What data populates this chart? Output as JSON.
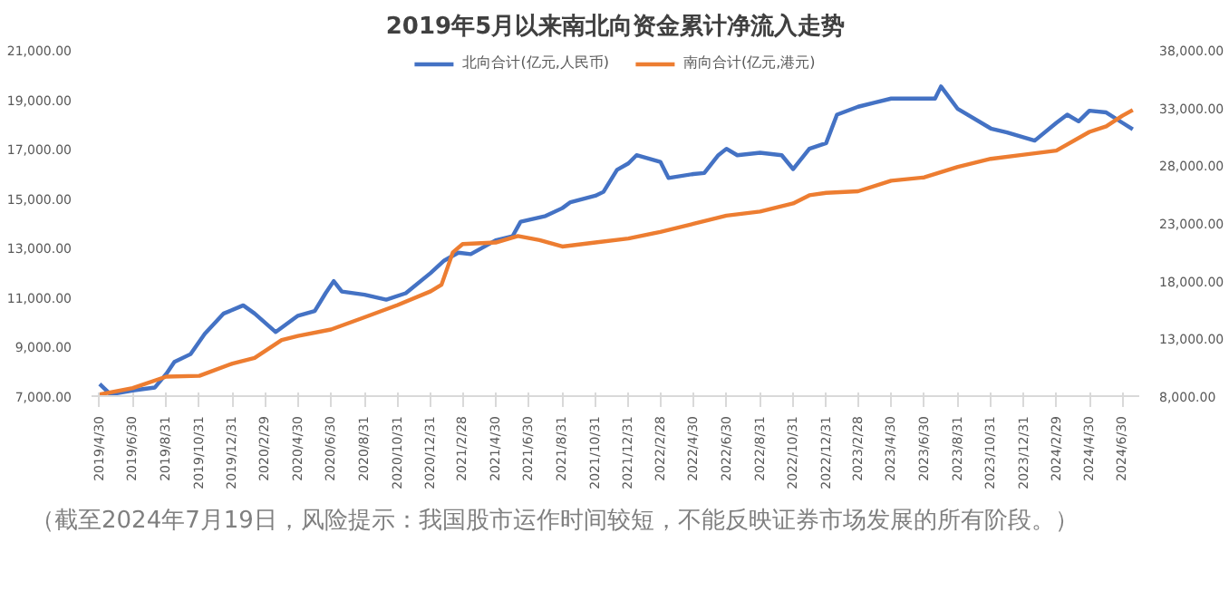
{
  "chart_data": {
    "type": "line",
    "title": "2019年5月以来南北向资金累计净流入走势",
    "annotations": [
      "（截至2024年7月19日，风险提示：我国股市运作时间较短，不能反映证券市场发展的所有阶段。）"
    ],
    "legend": "top",
    "grid": false,
    "marker": "none",
    "line_style": "solid",
    "xlim": [
      "2019-04-15",
      "2024-07-31"
    ],
    "xticks": [
      {
        "value": "2019-04-30",
        "label": "2019/4/30"
      },
      {
        "value": "2019-06-30",
        "label": "2019/6/30"
      },
      {
        "value": "2019-08-31",
        "label": "2019/8/31"
      },
      {
        "value": "2019-10-31",
        "label": "2019/10/31"
      },
      {
        "value": "2019-12-31",
        "label": "2019/12/31"
      },
      {
        "value": "2020-02-29",
        "label": "2020/2/29"
      },
      {
        "value": "2020-04-30",
        "label": "2020/4/30"
      },
      {
        "value": "2020-06-30",
        "label": "2020/6/30"
      },
      {
        "value": "2020-08-31",
        "label": "2020/8/31"
      },
      {
        "value": "2020-10-31",
        "label": "2020/10/31"
      },
      {
        "value": "2020-12-31",
        "label": "2020/12/31"
      },
      {
        "value": "2021-02-28",
        "label": "2021/2/28"
      },
      {
        "value": "2021-04-30",
        "label": "2021/4/30"
      },
      {
        "value": "2021-06-30",
        "label": "2021/6/30"
      },
      {
        "value": "2021-08-31",
        "label": "2021/8/31"
      },
      {
        "value": "2021-10-31",
        "label": "2021/10/31"
      },
      {
        "value": "2021-12-31",
        "label": "2021/12/31"
      },
      {
        "value": "2022-02-28",
        "label": "2022/2/28"
      },
      {
        "value": "2022-04-30",
        "label": "2022/4/30"
      },
      {
        "value": "2022-06-30",
        "label": "2022/6/30"
      },
      {
        "value": "2022-08-31",
        "label": "2022/8/31"
      },
      {
        "value": "2022-10-31",
        "label": "2022/10/31"
      },
      {
        "value": "2022-12-31",
        "label": "2022/12/31"
      },
      {
        "value": "2023-02-28",
        "label": "2023/2/28"
      },
      {
        "value": "2023-04-30",
        "label": "2023/4/30"
      },
      {
        "value": "2023-06-30",
        "label": "2023/6/30"
      },
      {
        "value": "2023-08-31",
        "label": "2023/8/31"
      },
      {
        "value": "2023-10-31",
        "label": "2023/10/31"
      },
      {
        "value": "2023-12-31",
        "label": "2023/12/31"
      },
      {
        "value": "2024-02-29",
        "label": "2024/2/29"
      },
      {
        "value": "2024-04-30",
        "label": "2024/4/30"
      },
      {
        "value": "2024-06-30",
        "label": "2024/6/30"
      }
    ],
    "ylim": [
      7000,
      21000
    ],
    "yticks": [
      {
        "value": 7000,
        "label": "7,000.00"
      },
      {
        "value": 9000,
        "label": "9,000.00"
      },
      {
        "value": 11000,
        "label": "11,000.00"
      },
      {
        "value": 13000,
        "label": "13,000.00"
      },
      {
        "value": 15000,
        "label": "15,000.00"
      },
      {
        "value": 17000,
        "label": "17,000.00"
      },
      {
        "value": 19000,
        "label": "19,000.00"
      },
      {
        "value": 21000,
        "label": "21,000.00"
      }
    ],
    "y2lim": [
      8000,
      38000
    ],
    "y2ticks": [
      {
        "value": 8000,
        "label": "8,000.00"
      },
      {
        "value": 13000,
        "label": "13,000.00"
      },
      {
        "value": 18000,
        "label": "18,000.00"
      },
      {
        "value": 23000,
        "label": "23,000.00"
      },
      {
        "value": 28000,
        "label": "28,000.00"
      },
      {
        "value": 33000,
        "label": "33,000.00"
      },
      {
        "value": 38000,
        "label": "38,000.00"
      }
    ],
    "series": [
      {
        "name": "北向合计(亿元,人民币)",
        "color": "#4472c4",
        "axis": "y",
        "x": [
          "2019-04-30",
          "2019-05-20",
          "2019-06-30",
          "2019-08-10",
          "2019-08-31",
          "2019-09-15",
          "2019-10-15",
          "2019-11-10",
          "2019-12-15",
          "2020-01-20",
          "2020-02-10",
          "2020-03-20",
          "2020-04-30",
          "2020-05-31",
          "2020-06-20",
          "2020-07-05",
          "2020-07-20",
          "2020-08-31",
          "2020-10-10",
          "2020-11-15",
          "2020-12-31",
          "2021-01-25",
          "2021-02-20",
          "2021-03-15",
          "2021-04-30",
          "2021-05-31",
          "2021-06-15",
          "2021-07-31",
          "2021-08-31",
          "2021-09-15",
          "2021-10-31",
          "2021-11-15",
          "2021-12-10",
          "2021-12-31",
          "2022-01-15",
          "2022-02-28",
          "2022-03-15",
          "2022-04-30",
          "2022-05-20",
          "2022-06-15",
          "2022-06-30",
          "2022-07-20",
          "2022-08-31",
          "2022-10-10",
          "2022-10-31",
          "2022-11-30",
          "2022-12-31",
          "2023-01-20",
          "2023-02-28",
          "2023-03-31",
          "2023-04-30",
          "2023-06-30",
          "2023-07-20",
          "2023-07-31",
          "2023-08-31",
          "2023-10-31",
          "2023-11-30",
          "2023-12-31",
          "2024-01-20",
          "2024-02-29",
          "2024-03-20",
          "2024-04-10",
          "2024-04-30",
          "2024-05-31",
          "2024-06-30",
          "2024-07-19"
        ],
        "values": [
          7490,
          7070,
          7230,
          7350,
          7900,
          8380,
          8700,
          9520,
          10340,
          10670,
          10340,
          9590,
          10250,
          10440,
          11160,
          11650,
          11230,
          11100,
          10900,
          11160,
          11980,
          12480,
          12800,
          12740,
          13300,
          13460,
          14050,
          14280,
          14600,
          14840,
          15100,
          15260,
          16150,
          16410,
          16740,
          16470,
          15820,
          15980,
          16020,
          16740,
          17000,
          16740,
          16840,
          16740,
          16180,
          17000,
          17230,
          18380,
          18700,
          18870,
          19030,
          19030,
          19030,
          19520,
          18610,
          17820,
          17660,
          17460,
          17330,
          18050,
          18380,
          18110,
          18540,
          18470,
          18050,
          17790
        ]
      },
      {
        "name": "南向合计(亿元,港元)",
        "color": "#ed7d31",
        "axis": "y2",
        "x": [
          "2019-04-30",
          "2019-06-30",
          "2019-08-31",
          "2019-10-31",
          "2019-12-31",
          "2020-02-10",
          "2020-03-31",
          "2020-04-30",
          "2020-06-30",
          "2020-08-31",
          "2020-10-31",
          "2020-12-31",
          "2021-01-20",
          "2021-02-10",
          "2021-02-28",
          "2021-04-30",
          "2021-06-10",
          "2021-07-20",
          "2021-08-31",
          "2021-10-31",
          "2021-12-31",
          "2022-02-28",
          "2022-04-30",
          "2022-06-30",
          "2022-08-31",
          "2022-10-31",
          "2022-11-30",
          "2022-12-31",
          "2023-02-28",
          "2023-04-30",
          "2023-06-30",
          "2023-08-31",
          "2023-10-31",
          "2023-12-31",
          "2024-02-29",
          "2024-04-30",
          "2024-05-31",
          "2024-06-30",
          "2024-07-19"
        ],
        "values": [
          8140,
          8700,
          9690,
          9760,
          10820,
          11310,
          12860,
          13210,
          13770,
          14830,
          15890,
          17080,
          17650,
          20460,
          21170,
          21310,
          21870,
          21520,
          20960,
          21310,
          21660,
          22230,
          22930,
          23640,
          23990,
          24690,
          25400,
          25610,
          25750,
          26660,
          26950,
          27860,
          28560,
          28920,
          29270,
          30890,
          31380,
          32300,
          32790
        ]
      }
    ]
  }
}
